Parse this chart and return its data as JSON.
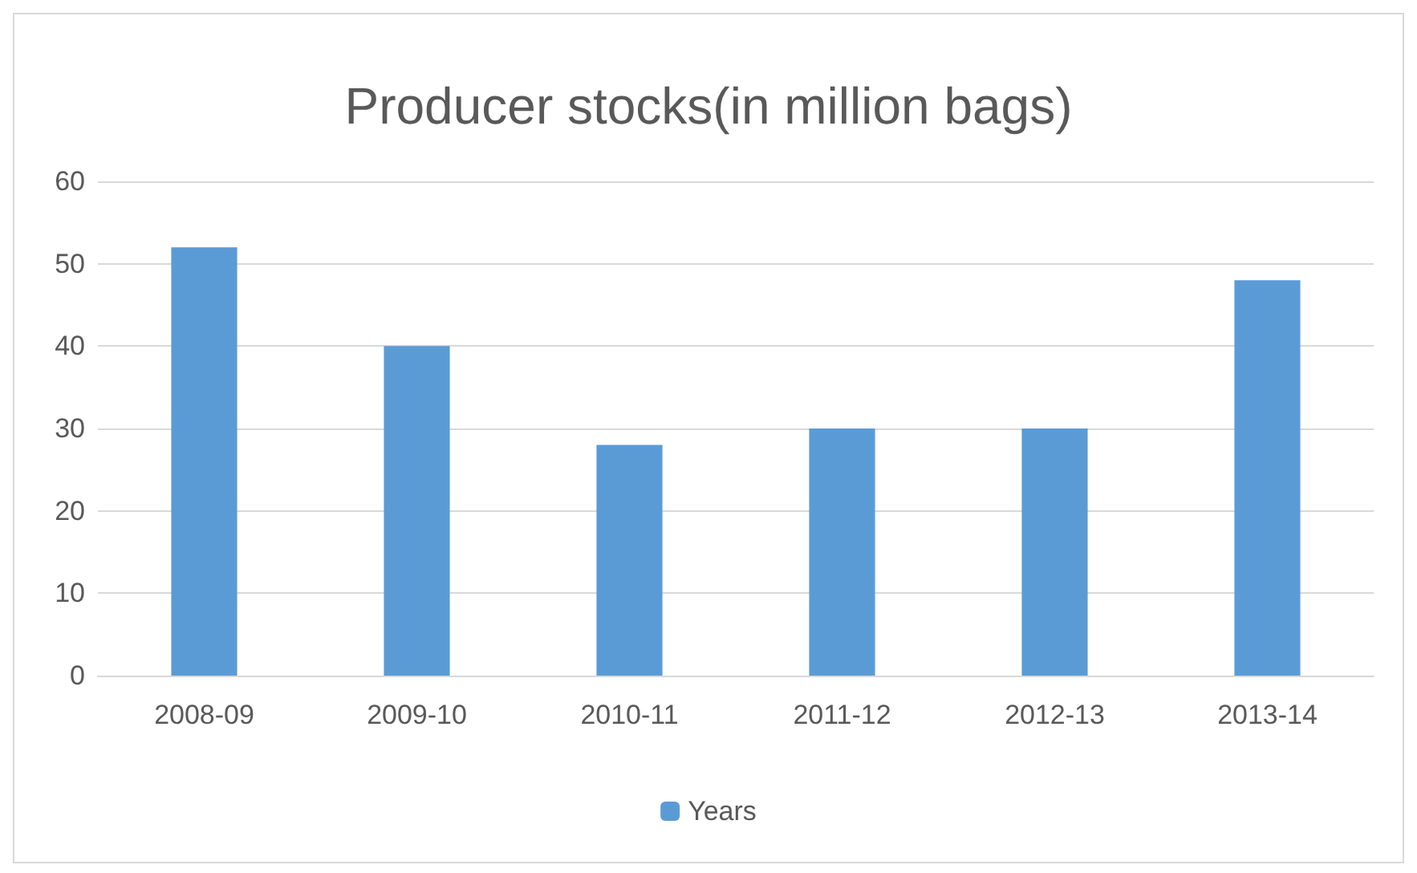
{
  "chart_data": {
    "type": "bar",
    "title": "Producer stocks(in million bags)",
    "categories": [
      "2008-09",
      "2009-10",
      "2010-11",
      "2011-12",
      "2012-13",
      "2013-14"
    ],
    "series": [
      {
        "name": "Years",
        "color": "#5b9bd5",
        "values": [
          52,
          40,
          28,
          30,
          30,
          48
        ]
      }
    ],
    "ylim": [
      0,
      60
    ],
    "yticks": [
      0,
      10,
      20,
      30,
      40,
      50,
      60
    ],
    "grid": "y",
    "legend": "bottom"
  }
}
